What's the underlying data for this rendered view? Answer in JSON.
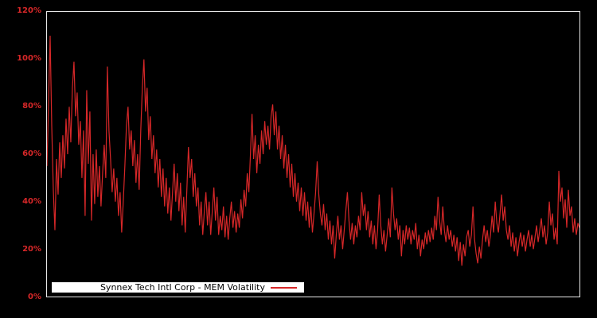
{
  "window": {
    "background_color": "#000000"
  },
  "legend": {
    "label": "Synnex Tech Intl Corp - MEM Volatility"
  },
  "chart_data": {
    "type": "line",
    "title": "Synnex Tech Intl Corp - MEM Volatility",
    "xlabel": "",
    "ylabel": "",
    "ylim": [
      0,
      120
    ],
    "yticks_percent": [
      0,
      20,
      40,
      60,
      80,
      100,
      120
    ],
    "ytick_labels": [
      "0%",
      "20%",
      "40%",
      "60%",
      "80%",
      "100%",
      "120%"
    ],
    "xtick_labels": [],
    "grid": false,
    "legend_position": "bottom-left-inside",
    "plot_background": "#000000",
    "border_color": "#e8e8e8",
    "tick_label_color": "#d62728",
    "series": [
      {
        "name": "Synnex Tech Intl Corp - MEM Volatility",
        "color": "#d62728",
        "unit": "%",
        "values": [
          55,
          82,
          110,
          72,
          45,
          28,
          58,
          43,
          65,
          50,
          68,
          54,
          75,
          60,
          80,
          65,
          88,
          99,
          76,
          86,
          64,
          74,
          50,
          70,
          34,
          87,
          56,
          78,
          32,
          60,
          39,
          62,
          42,
          55,
          38,
          52,
          64,
          50,
          97,
          70,
          58,
          44,
          54,
          40,
          50,
          34,
          44,
          27,
          40,
          55,
          72,
          80,
          62,
          70,
          55,
          66,
          48,
          60,
          45,
          70,
          88,
          100,
          78,
          88,
          66,
          76,
          58,
          68,
          52,
          62,
          46,
          58,
          42,
          54,
          38,
          50,
          35,
          46,
          32,
          44,
          56,
          40,
          52,
          36,
          48,
          30,
          42,
          27,
          45,
          63,
          50,
          58,
          42,
          52,
          38,
          46,
          30,
          40,
          26,
          36,
          44,
          30,
          40,
          26,
          36,
          46,
          32,
          42,
          26,
          34,
          28,
          38,
          25,
          34,
          24,
          33,
          40,
          29,
          36,
          27,
          35,
          29,
          41,
          33,
          45,
          38,
          52,
          44,
          60,
          77,
          58,
          68,
          52,
          64,
          56,
          70,
          60,
          74,
          64,
          72,
          62,
          76,
          81,
          68,
          78,
          62,
          72,
          58,
          68,
          54,
          64,
          50,
          60,
          46,
          56,
          42,
          52,
          40,
          48,
          36,
          46,
          34,
          44,
          32,
          40,
          29,
          38,
          27,
          35,
          44,
          57,
          43,
          35,
          30,
          39,
          28,
          35,
          24,
          32,
          22,
          30,
          16,
          26,
          34,
          24,
          30,
          20,
          28,
          36,
          44,
          32,
          24,
          31,
          22,
          30,
          25,
          34,
          28,
          44,
          34,
          39,
          28,
          36,
          25,
          32,
          22,
          30,
          20,
          28,
          43,
          30,
          22,
          28,
          19,
          26,
          33,
          25,
          46,
          35,
          28,
          33,
          24,
          30,
          17,
          28,
          22,
          30,
          24,
          29,
          22,
          28,
          24,
          31,
          20,
          26,
          17,
          24,
          20,
          27,
          22,
          28,
          23,
          29,
          24,
          34,
          28,
          42,
          32,
          26,
          38,
          28,
          23,
          30,
          24,
          28,
          21,
          26,
          19,
          25,
          15,
          23,
          13,
          22,
          17,
          25,
          28,
          21,
          26,
          38,
          24,
          18,
          14,
          21,
          16,
          24,
          30,
          23,
          28,
          21,
          26,
          34,
          27,
          40,
          31,
          27,
          35,
          43,
          32,
          38,
          28,
          24,
          30,
          21,
          27,
          19,
          25,
          17,
          23,
          27,
          21,
          26,
          19,
          24,
          28,
          21,
          26,
          20,
          25,
          30,
          23,
          28,
          33,
          25,
          30,
          22,
          27,
          40,
          30,
          35,
          24,
          29,
          22,
          53,
          40,
          46,
          33,
          41,
          29,
          45,
          34,
          38,
          27,
          33,
          26,
          31,
          29
        ]
      }
    ]
  }
}
